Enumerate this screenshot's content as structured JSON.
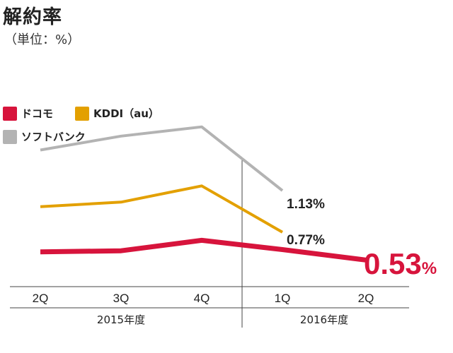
{
  "header": {
    "title": "解約率",
    "unit": "（単位：%）"
  },
  "legend": [
    {
      "label": "ドコモ",
      "color": "#d7143c"
    },
    {
      "label": "KDDI（au）",
      "color": "#e3a000"
    },
    {
      "label": "ソフトバンク",
      "color": "#b3b3b3"
    }
  ],
  "chart_data": {
    "type": "line",
    "title": "解約率",
    "subtitle": "（単位：%）",
    "categories": [
      "2Q",
      "3Q",
      "4Q",
      "1Q",
      "2Q"
    ],
    "groups": [
      {
        "label": "2015年度",
        "categories": [
          "2Q",
          "3Q",
          "4Q"
        ]
      },
      {
        "label": "2016年度",
        "categories": [
          "1Q",
          "2Q"
        ]
      }
    ],
    "series": [
      {
        "name": "ドコモ",
        "color": "#d7143c",
        "values": [
          0.6,
          0.61,
          0.7,
          0.62,
          0.53
        ],
        "end_label": "0.53",
        "end_unit": "%"
      },
      {
        "name": "KDDI（au）",
        "color": "#e3a000",
        "values": [
          0.99,
          1.03,
          1.17,
          0.77,
          null
        ],
        "end_label": "0.77%"
      },
      {
        "name": "ソフトバンク",
        "color": "#b3b3b3",
        "values": [
          1.48,
          1.6,
          1.68,
          1.13,
          null
        ],
        "end_label": "1.13%"
      }
    ],
    "xlabel": "",
    "ylabel": "",
    "ylim": [
      0.3,
      1.8
    ],
    "grid": false,
    "legend_position": "top-left"
  }
}
